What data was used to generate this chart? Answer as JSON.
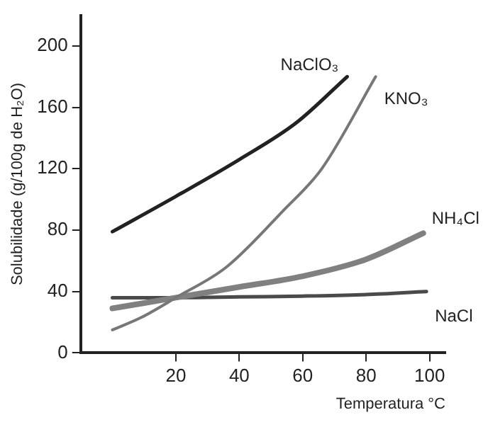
{
  "chart_data": {
    "type": "line",
    "xlabel": "Temperatura °C",
    "ylabel": "Solubilidade (g/100g de H₂O)",
    "xlim": [
      -10,
      105
    ],
    "xticks": [
      20,
      40,
      60,
      80,
      100
    ],
    "ylim": [
      0,
      220
    ],
    "yticks": [
      0,
      40,
      80,
      120,
      160,
      200
    ],
    "grid": false,
    "legend": false,
    "marker": "none",
    "line_style": "solid",
    "series": [
      {
        "name": "NaClO₃",
        "color": "#222222",
        "x": [
          0,
          20,
          40,
          58,
          74
        ],
        "values": [
          79,
          102,
          126,
          150,
          180
        ]
      },
      {
        "name": "KNO₃",
        "color": "#777777",
        "x": [
          0,
          9,
          20,
          36,
          54,
          66,
          83
        ],
        "values": [
          15,
          23,
          36,
          56,
          93,
          120,
          180
        ]
      },
      {
        "name": "NH₄Cl",
        "color": "#808080",
        "x": [
          0,
          20,
          40,
          60,
          80,
          98
        ],
        "values": [
          29,
          36,
          43,
          50,
          61,
          78
        ]
      },
      {
        "name": "NaCl",
        "color": "#4a4a4a",
        "x": [
          0,
          20,
          40,
          60,
          80,
          99
        ],
        "values": [
          36,
          36,
          36.5,
          37,
          38,
          40
        ]
      }
    ]
  }
}
